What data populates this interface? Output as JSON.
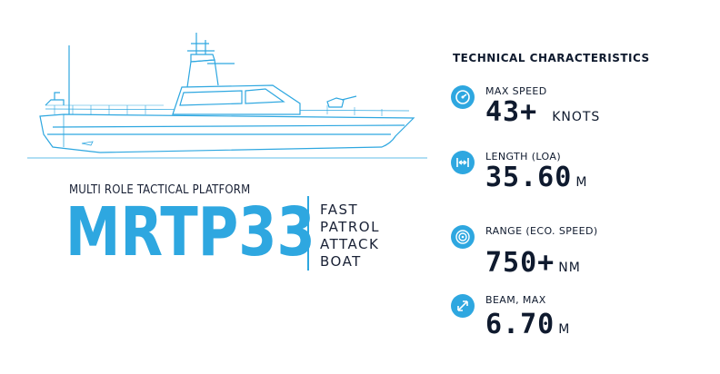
{
  "colors": {
    "accent": "#2ea7e0",
    "text": "#0f1a2e"
  },
  "hero": {
    "subtitle": "MULTI ROLE TACTICAL PLATFORM",
    "model": "MRTP33",
    "type_lines": [
      "FAST",
      "PATROL",
      "ATTACK",
      "BOAT"
    ]
  },
  "tech": {
    "title": "TECHNICAL CHARACTERISTICS",
    "specs": [
      {
        "icon": "speedometer-icon",
        "label": "MAX SPEED",
        "value": "43+",
        "unit": "KNOTS"
      },
      {
        "icon": "length-arrows-icon",
        "label": "LENGTH (LOA)",
        "value": "35.60",
        "unit": "M"
      },
      {
        "icon": "range-target-icon",
        "label": "RANGE (ECO. SPEED)",
        "value": "750+",
        "unit": "NM"
      },
      {
        "icon": "beam-diagonal-icon",
        "label": "BEAM, MAX",
        "value": "6.70",
        "unit": "M"
      }
    ]
  }
}
